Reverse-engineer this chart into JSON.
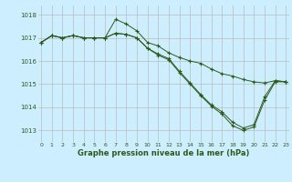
{
  "title": "Graphe pression niveau de la mer (hPa)",
  "bg_color": "#cceeff",
  "grid_color": "#bbbbbb",
  "line_color": "#2d5a1b",
  "xlim": [
    -0.3,
    23.3
  ],
  "ylim": [
    1012.5,
    1018.4
  ],
  "yticks": [
    1013,
    1014,
    1015,
    1016,
    1017,
    1018
  ],
  "xticks": [
    0,
    1,
    2,
    3,
    4,
    5,
    6,
    7,
    8,
    9,
    10,
    11,
    12,
    13,
    14,
    15,
    16,
    17,
    18,
    19,
    20,
    21,
    22,
    23
  ],
  "series1": [
    1016.8,
    1017.1,
    1017.0,
    1017.1,
    1017.0,
    1017.0,
    1017.0,
    1017.8,
    1017.6,
    1017.3,
    1016.8,
    1016.65,
    1016.35,
    1016.15,
    1016.0,
    1015.9,
    1015.65,
    1015.45,
    1015.35,
    1015.2,
    1015.1,
    1015.05,
    1015.15,
    1015.1
  ],
  "series2": [
    1016.8,
    1017.1,
    1017.0,
    1017.1,
    1017.0,
    1017.0,
    1017.0,
    1017.2,
    1017.15,
    1017.0,
    1016.55,
    1016.3,
    1016.1,
    1015.55,
    1015.05,
    1014.55,
    1014.1,
    1013.8,
    1013.35,
    1013.1,
    1013.25,
    1014.45,
    1015.15,
    1015.1
  ],
  "series3": [
    1016.8,
    1017.1,
    1017.0,
    1017.1,
    1017.0,
    1017.0,
    1017.0,
    1017.2,
    1017.15,
    1017.0,
    1016.55,
    1016.25,
    1016.05,
    1015.5,
    1015.0,
    1014.5,
    1014.05,
    1013.7,
    1013.2,
    1013.0,
    1013.15,
    1014.3,
    1015.1,
    1015.1
  ]
}
